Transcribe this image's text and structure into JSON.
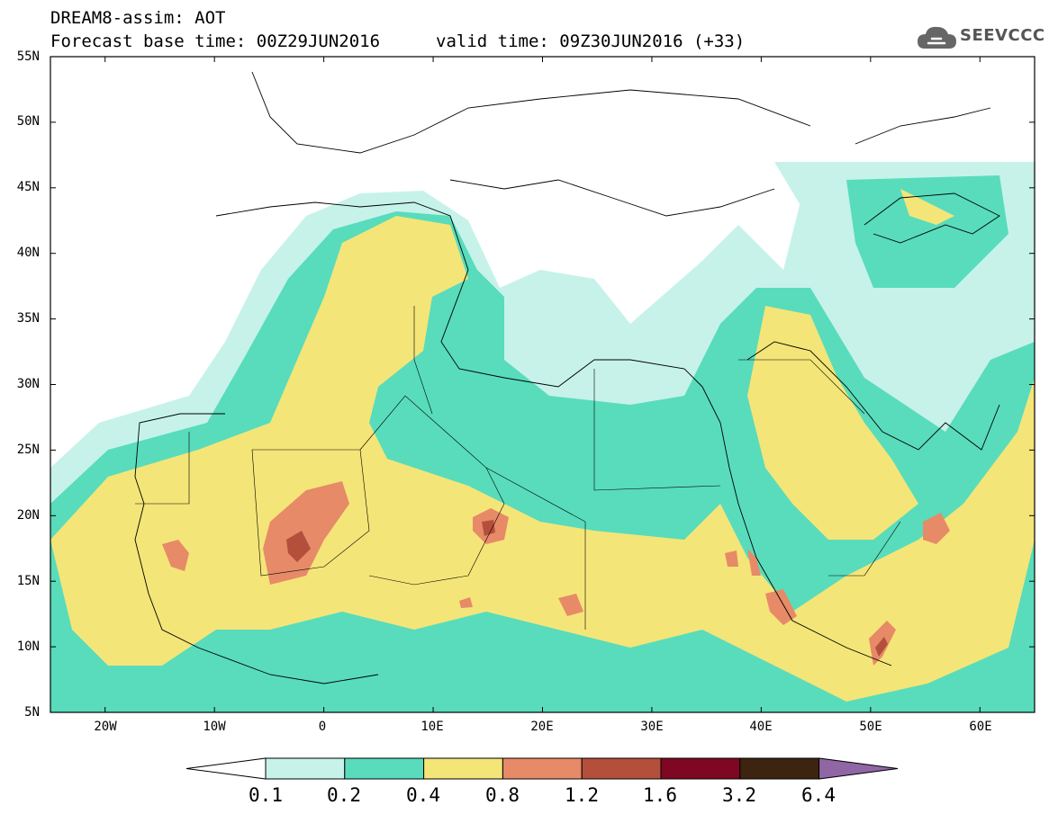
{
  "header": {
    "title": "DREAM8-assim: AOT",
    "base_time": "Forecast base time: 00Z29JUN2016",
    "valid_time": "valid time: 09Z30JUN2016 (+33)"
  },
  "logo": {
    "text": "SEEVCCC",
    "icon": "cloud-icon"
  },
  "map": {
    "lat_labels": [
      "55N",
      "50N",
      "45N",
      "40N",
      "35N",
      "30N",
      "25N",
      "20N",
      "15N",
      "10N",
      "5N"
    ],
    "lon_labels": [
      "20W",
      "10W",
      "0",
      "10E",
      "20E",
      "30E",
      "40E",
      "50E",
      "60E"
    ],
    "lon_range": [
      -25,
      65
    ],
    "lat_range": [
      5,
      55
    ]
  },
  "colorbar": {
    "labels": [
      "0.1",
      "0.2",
      "0.4",
      "0.8",
      "1.2",
      "1.6",
      "3.2",
      "6.4"
    ],
    "colors": [
      "#ffffff",
      "#c6f2ea",
      "#58dcbc",
      "#f4e578",
      "#e78a68",
      "#b44f3c",
      "#7e0824",
      "#3d2411",
      "#9066a5"
    ]
  },
  "chart_data": {
    "type": "heatmap",
    "variable": "AOT",
    "levels": [
      0.1,
      0.2,
      0.4,
      0.8,
      1.2,
      1.6,
      3.2,
      6.4
    ],
    "colors": [
      "#ffffff",
      "#c6f2ea",
      "#58dcbc",
      "#f4e578",
      "#e78a68",
      "#b44f3c",
      "#7e0824",
      "#3d2411",
      "#9066a5"
    ]
  }
}
